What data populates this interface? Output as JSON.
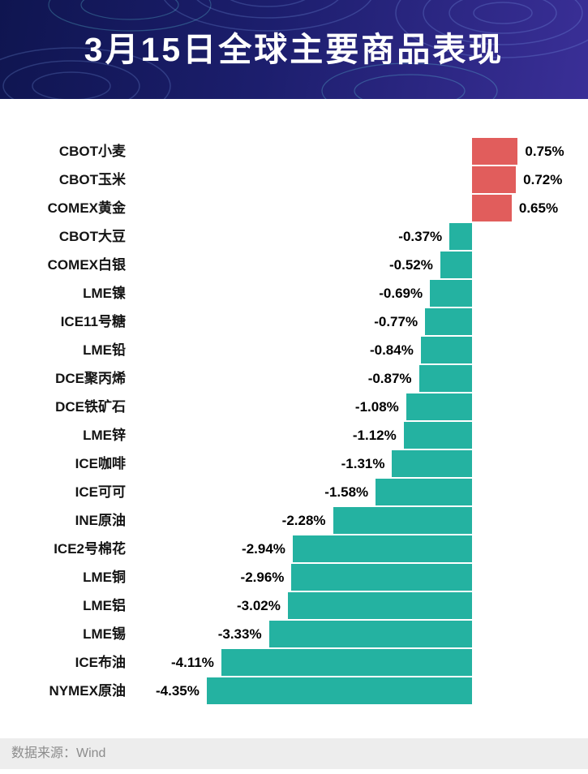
{
  "header": {
    "title": "3月15日全球主要商品表现",
    "background_gradient": [
      "#0f1550",
      "#3a2f97"
    ]
  },
  "footer": {
    "source_text": "数据来源：Wind"
  },
  "chart_data": {
    "type": "bar",
    "orientation": "horizontal",
    "title": "3月15日全球主要商品表现",
    "categories": [
      "CBOT小麦",
      "CBOT玉米",
      "COMEX黄金",
      "CBOT大豆",
      "COMEX白银",
      "LME镍",
      "ICE11号糖",
      "LME铅",
      "DCE聚丙烯",
      "DCE铁矿石",
      "LME锌",
      "ICE咖啡",
      "ICE可可",
      "INE原油",
      "ICE2号棉花",
      "LME铜",
      "LME铝",
      "LME锡",
      "ICE布油",
      "NYMEX原油"
    ],
    "values": [
      0.75,
      0.72,
      0.65,
      -0.37,
      -0.52,
      -0.69,
      -0.77,
      -0.84,
      -0.87,
      -1.08,
      -1.12,
      -1.31,
      -1.58,
      -2.28,
      -2.94,
      -2.96,
      -3.02,
      -3.33,
      -4.11,
      -4.35
    ],
    "value_labels": [
      "0.75%",
      "0.72%",
      "0.65%",
      "-0.37%",
      "-0.52%",
      "-0.69%",
      "-0.77%",
      "-0.84%",
      "-0.87%",
      "-1.08%",
      "-1.12%",
      "-1.31%",
      "-1.58%",
      "-2.28%",
      "-2.94%",
      "-2.96%",
      "-3.02%",
      "-3.33%",
      "-4.11%",
      "-4.35%"
    ],
    "positive_color": "#e15d5c",
    "negative_color": "#24b2a1",
    "xlim": [
      -4.6,
      1.0
    ],
    "grid": false,
    "legend": false
  }
}
